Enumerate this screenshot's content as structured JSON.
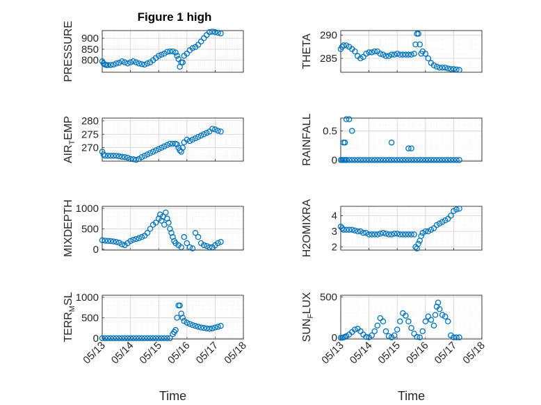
{
  "figure_title": "Figure 1 high",
  "chart_data": [
    {
      "type": "scatter",
      "ylabel": "PRESSURE",
      "ylim": [
        745,
        935
      ],
      "yticks": [
        800,
        850,
        900
      ],
      "xlim": [
        0,
        5
      ],
      "xticklabels": [
        "05/13",
        "05/14",
        "05/15",
        "05/16",
        "05/17",
        "05/18"
      ],
      "xlabel": "",
      "grid": true,
      "color": "#0072bd",
      "x": [
        0.0,
        0.05,
        0.1,
        0.15,
        0.2,
        0.3,
        0.4,
        0.5,
        0.6,
        0.7,
        0.8,
        0.9,
        1.0,
        1.1,
        1.2,
        1.3,
        1.4,
        1.5,
        1.6,
        1.7,
        1.8,
        1.9,
        2.0,
        2.1,
        2.2,
        2.3,
        2.4,
        2.5,
        2.6,
        2.65,
        2.7,
        2.75,
        2.8,
        2.85,
        2.9,
        3.0,
        3.1,
        3.2,
        3.3,
        3.4,
        3.5,
        3.6,
        3.7,
        3.8,
        3.9,
        4.0,
        4.1,
        4.2
      ],
      "y": [
        795,
        785,
        780,
        778,
        778,
        778,
        780,
        785,
        788,
        795,
        790,
        785,
        790,
        795,
        790,
        785,
        782,
        780,
        785,
        790,
        800,
        810,
        820,
        825,
        830,
        838,
        840,
        840,
        835,
        820,
        805,
        770,
        790,
        790,
        820,
        830,
        845,
        855,
        860,
        870,
        885,
        900,
        915,
        928,
        930,
        928,
        925,
        922
      ]
    },
    {
      "type": "scatter",
      "ylabel": "THETA",
      "ylim": [
        282,
        291
      ],
      "yticks": [
        285,
        290
      ],
      "xlim": [
        0,
        5
      ],
      "xticklabels": [
        "05/13",
        "05/14",
        "05/15",
        "05/16",
        "05/17",
        "05/18"
      ],
      "xlabel": "",
      "grid": true,
      "color": "#0072bd",
      "x": [
        0.0,
        0.05,
        0.1,
        0.2,
        0.3,
        0.4,
        0.5,
        0.6,
        0.7,
        0.8,
        0.9,
        1.0,
        1.1,
        1.2,
        1.3,
        1.4,
        1.5,
        1.6,
        1.7,
        1.8,
        1.9,
        2.0,
        2.1,
        2.2,
        2.3,
        2.4,
        2.5,
        2.6,
        2.65,
        2.7,
        2.75,
        2.8,
        2.85,
        2.9,
        3.0,
        3.1,
        3.2,
        3.3,
        3.4,
        3.5,
        3.6,
        3.7,
        3.8,
        3.9,
        4.0,
        4.1,
        4.2
      ],
      "y": [
        287,
        287.5,
        287.8,
        287.8,
        287.5,
        287,
        286.5,
        285.5,
        285,
        285.3,
        286,
        286.3,
        286.3,
        286.5,
        286.5,
        286,
        285.8,
        285.5,
        285.5,
        285.8,
        285.8,
        286,
        285.8,
        285.8,
        285.8,
        285.8,
        285.8,
        286,
        288,
        290.3,
        290.3,
        288,
        286,
        286.5,
        286,
        285,
        284,
        283.5,
        283.2,
        283,
        283,
        283,
        282.8,
        282.7,
        282.7,
        282.6,
        282.5
      ]
    },
    {
      "type": "scatter",
      "ylabel": "AIR_TEMP",
      "ylim": [
        265,
        281
      ],
      "yticks": [
        270,
        275,
        280
      ],
      "xlim": [
        0,
        5
      ],
      "xticklabels": [
        "05/13",
        "05/14",
        "05/15",
        "05/16",
        "05/17",
        "05/18"
      ],
      "xlabel": "",
      "grid": true,
      "color": "#0072bd",
      "x": [
        0.0,
        0.05,
        0.1,
        0.2,
        0.3,
        0.4,
        0.5,
        0.6,
        0.7,
        0.8,
        0.9,
        1.0,
        1.1,
        1.2,
        1.3,
        1.4,
        1.5,
        1.6,
        1.7,
        1.8,
        1.9,
        2.0,
        2.1,
        2.2,
        2.3,
        2.4,
        2.5,
        2.6,
        2.65,
        2.7,
        2.75,
        2.8,
        2.85,
        2.9,
        3.0,
        3.1,
        3.2,
        3.3,
        3.4,
        3.5,
        3.6,
        3.7,
        3.8,
        3.9,
        4.0,
        4.1,
        4.2
      ],
      "y": [
        268.5,
        267.5,
        267,
        267,
        267,
        267,
        267,
        266.8,
        266.6,
        266.5,
        266.3,
        265.8,
        265.7,
        265.5,
        265.8,
        266.5,
        267,
        267.5,
        268,
        268.5,
        269,
        269.5,
        270,
        270.5,
        271,
        271.5,
        271.5,
        271.5,
        271.2,
        270,
        269,
        268.5,
        270,
        272,
        273,
        272.5,
        273,
        273.5,
        274,
        274.5,
        275,
        275.5,
        276,
        277,
        276.8,
        276.3,
        276
      ]
    },
    {
      "type": "scatter",
      "ylabel": "RAINFALL",
      "ylim": [
        -0.02,
        0.72
      ],
      "yticks": [
        0,
        0.5
      ],
      "xlim": [
        0,
        5
      ],
      "xticklabels": [
        "05/13",
        "05/14",
        "05/15",
        "05/16",
        "05/17",
        "05/18"
      ],
      "xlabel": "",
      "grid": true,
      "color": "#0072bd",
      "x": [
        0.0,
        0.05,
        0.1,
        0.15,
        0.2,
        0.3,
        0.4,
        0.5,
        0.6,
        0.7,
        0.8,
        0.9,
        1.0,
        1.1,
        1.2,
        1.3,
        1.4,
        1.5,
        1.6,
        1.7,
        1.8,
        1.9,
        2.0,
        2.1,
        2.2,
        2.3,
        2.4,
        2.5,
        2.6,
        2.7,
        2.8,
        2.9,
        3.0,
        3.1,
        3.2,
        3.3,
        3.4,
        3.5,
        3.6,
        3.7,
        3.8,
        3.9,
        4.0,
        4.1,
        4.2,
        0.1,
        0.15,
        0.2,
        0.3,
        0.4,
        1.8,
        2.4,
        2.5
      ],
      "y": [
        0,
        0,
        0,
        0,
        0,
        0,
        0,
        0,
        0,
        0,
        0,
        0,
        0,
        0,
        0,
        0,
        0,
        0,
        0,
        0,
        0,
        0,
        0,
        0,
        0,
        0,
        0,
        0,
        0,
        0,
        0,
        0,
        0,
        0,
        0,
        0,
        0,
        0,
        0,
        0,
        0,
        0,
        0,
        0,
        0,
        0.3,
        0.3,
        0.7,
        0.7,
        0.5,
        0.3,
        0.2,
        0.2
      ]
    },
    {
      "type": "scatter",
      "ylabel": "MIXDEPTH",
      "ylim": [
        -20,
        1050
      ],
      "yticks": [
        0,
        500,
        1000
      ],
      "xlim": [
        0,
        5
      ],
      "xticklabels": [
        "05/13",
        "05/14",
        "05/15",
        "05/16",
        "05/17",
        "05/18"
      ],
      "xlabel": "",
      "grid": true,
      "color": "#0072bd",
      "x": [
        0.0,
        0.1,
        0.2,
        0.3,
        0.4,
        0.5,
        0.6,
        0.7,
        0.8,
        0.9,
        1.0,
        1.1,
        1.2,
        1.3,
        1.4,
        1.5,
        1.6,
        1.7,
        1.8,
        1.9,
        2.0,
        2.05,
        2.1,
        2.15,
        2.2,
        2.25,
        2.3,
        2.35,
        2.4,
        2.45,
        2.5,
        2.55,
        2.6,
        2.7,
        2.8,
        2.9,
        3.0,
        3.1,
        3.2,
        3.3,
        3.4,
        3.5,
        3.6,
        3.7,
        3.8,
        3.9,
        4.0,
        4.1,
        4.2
      ],
      "y": [
        220,
        210,
        205,
        200,
        190,
        180,
        160,
        120,
        100,
        150,
        200,
        230,
        250,
        270,
        300,
        330,
        400,
        500,
        600,
        650,
        750,
        850,
        700,
        800,
        600,
        900,
        750,
        650,
        500,
        400,
        300,
        200,
        150,
        100,
        50,
        300,
        150,
        50,
        20,
        400,
        300,
        150,
        100,
        80,
        50,
        50,
        100,
        150,
        180
      ]
    },
    {
      "type": "scatter",
      "ylabel": "H2OMIXRA",
      "ylim": [
        1.8,
        4.6
      ],
      "yticks": [
        2,
        3,
        4
      ],
      "xlim": [
        0,
        5
      ],
      "xticklabels": [
        "05/13",
        "05/14",
        "05/15",
        "05/16",
        "05/17",
        "05/18"
      ],
      "xlabel": "",
      "grid": true,
      "color": "#0072bd",
      "x": [
        0.0,
        0.05,
        0.1,
        0.2,
        0.3,
        0.4,
        0.5,
        0.6,
        0.7,
        0.8,
        0.9,
        1.0,
        1.1,
        1.2,
        1.3,
        1.4,
        1.5,
        1.6,
        1.7,
        1.8,
        1.9,
        2.0,
        2.1,
        2.2,
        2.3,
        2.4,
        2.5,
        2.6,
        2.65,
        2.7,
        2.75,
        2.8,
        2.85,
        2.9,
        3.0,
        3.1,
        3.2,
        3.3,
        3.4,
        3.5,
        3.6,
        3.7,
        3.8,
        3.9,
        4.0,
        4.1,
        4.2
      ],
      "y": [
        3.3,
        3.2,
        3.1,
        3.1,
        3.1,
        3.1,
        3.05,
        3.0,
        3.0,
        2.9,
        2.9,
        2.8,
        2.8,
        2.8,
        2.8,
        2.85,
        2.9,
        2.85,
        2.8,
        2.8,
        2.85,
        2.85,
        2.8,
        2.8,
        2.8,
        2.8,
        2.8,
        2.8,
        2.0,
        1.9,
        2.2,
        2.4,
        2.7,
        2.9,
        3.0,
        3.0,
        3.1,
        3.2,
        3.4,
        3.5,
        3.6,
        3.7,
        3.8,
        4.0,
        4.3,
        4.4,
        4.45
      ]
    },
    {
      "type": "scatter",
      "ylabel": "TERR_MSL",
      "ylim": [
        -20,
        1050
      ],
      "yticks": [
        0,
        500,
        1000
      ],
      "xlim": [
        0,
        5
      ],
      "xticklabels": [
        "05/13",
        "05/14",
        "05/15",
        "05/16",
        "05/17",
        "05/18"
      ],
      "xlabel": "Time",
      "grid": true,
      "color": "#0072bd",
      "x": [
        0.0,
        0.1,
        0.2,
        0.3,
        0.4,
        0.5,
        0.6,
        0.7,
        0.8,
        0.9,
        1.0,
        1.1,
        1.2,
        1.3,
        1.4,
        1.5,
        1.6,
        1.7,
        1.8,
        1.9,
        2.0,
        2.1,
        2.2,
        2.3,
        2.4,
        2.5,
        2.55,
        2.6,
        2.65,
        2.7,
        2.75,
        2.8,
        2.85,
        2.9,
        3.0,
        3.1,
        3.2,
        3.3,
        3.4,
        3.5,
        3.6,
        3.7,
        3.8,
        3.9,
        4.0,
        4.1,
        4.2
      ],
      "y": [
        0,
        0,
        0,
        0,
        0,
        0,
        0,
        0,
        0,
        0,
        0,
        0,
        0,
        0,
        0,
        0,
        0,
        0,
        0,
        0,
        0,
        0,
        0,
        0,
        0,
        100,
        150,
        200,
        500,
        800,
        800,
        600,
        500,
        420,
        380,
        350,
        320,
        300,
        280,
        260,
        250,
        240,
        230,
        240,
        260,
        280,
        300
      ]
    },
    {
      "type": "scatter",
      "ylabel": "SUN_FLUX",
      "ylim": [
        -15,
        520
      ],
      "yticks": [
        0,
        500
      ],
      "xlim": [
        0,
        5
      ],
      "xticklabels": [
        "05/13",
        "05/14",
        "05/15",
        "05/16",
        "05/17",
        "05/18"
      ],
      "xlabel": "Time",
      "grid": true,
      "color": "#0072bd",
      "x": [
        0.0,
        0.05,
        0.1,
        0.15,
        0.2,
        0.3,
        0.4,
        0.5,
        0.6,
        0.7,
        0.8,
        0.9,
        1.0,
        1.1,
        1.2,
        1.3,
        1.4,
        1.5,
        1.6,
        1.7,
        1.8,
        1.9,
        2.0,
        2.1,
        2.2,
        2.3,
        2.4,
        2.5,
        2.6,
        2.7,
        2.8,
        2.9,
        3.0,
        3.1,
        3.2,
        3.3,
        3.35,
        3.4,
        3.45,
        3.5,
        3.6,
        3.7,
        3.8,
        3.9,
        4.0,
        4.1,
        4.2
      ],
      "y": [
        0,
        0,
        5,
        10,
        20,
        40,
        70,
        100,
        110,
        80,
        40,
        10,
        5,
        30,
        80,
        150,
        240,
        200,
        80,
        20,
        5,
        30,
        100,
        200,
        300,
        270,
        200,
        120,
        50,
        10,
        5,
        80,
        200,
        260,
        220,
        150,
        280,
        380,
        430,
        350,
        280,
        260,
        200,
        30,
        5,
        5,
        5
      ]
    }
  ]
}
